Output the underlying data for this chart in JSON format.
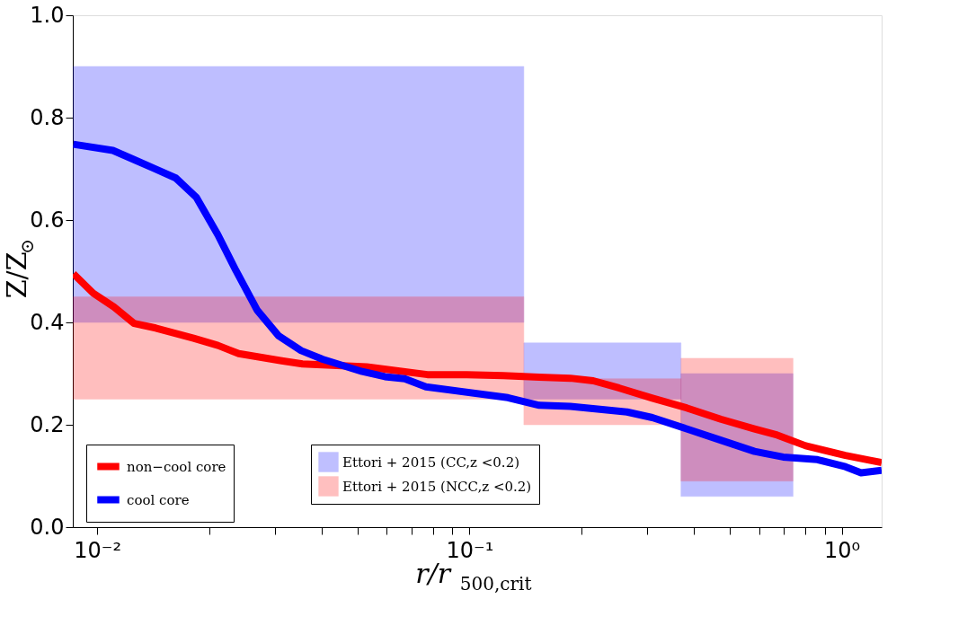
{
  "chart_data": {
    "type": "line",
    "xlabel": "r/r$_{500,crit}$",
    "ylabel": "Z/Z$_{⊙}$",
    "log": "x",
    "grid": false,
    "legend": "bottom left",
    "line_style": "solid",
    "marker": "none",
    "xlim": [
      0.0086,
      1.28
    ],
    "ylim": [
      0,
      1
    ],
    "xticks": [
      {
        "value": 0.01,
        "label": "10⁻²"
      },
      {
        "value": 0.02,
        "label": null
      },
      {
        "value": 0.03,
        "label": null
      },
      {
        "value": 0.04,
        "label": null
      },
      {
        "value": 0.05,
        "label": null
      },
      {
        "value": 0.06,
        "label": null
      },
      {
        "value": 0.07,
        "label": null
      },
      {
        "value": 0.08,
        "label": null
      },
      {
        "value": 0.09,
        "label": null
      },
      {
        "value": 0.1,
        "label": "10⁻¹"
      },
      {
        "value": 0.2,
        "label": null
      },
      {
        "value": 0.3,
        "label": null
      },
      {
        "value": 0.4,
        "label": null
      },
      {
        "value": 0.5,
        "label": null
      },
      {
        "value": 0.6,
        "label": null
      },
      {
        "value": 0.7,
        "label": null
      },
      {
        "value": 0.8,
        "label": null
      },
      {
        "value": 0.9,
        "label": null
      },
      {
        "value": 1,
        "label": "10⁰"
      }
    ],
    "yticks": [
      {
        "value": 0,
        "label": "0.0"
      },
      {
        "value": 0.2,
        "label": "0.2"
      },
      {
        "value": 0.4,
        "label": "0.4"
      },
      {
        "value": 0.6,
        "label": "0.6"
      },
      {
        "value": 0.8,
        "label": "0.8"
      },
      {
        "value": 1,
        "label": "1.0"
      }
    ],
    "series": [
      {
        "name": "Ettori + 2015 (CC,z <0.2)",
        "type": "area",
        "color": "#0000ff",
        "x": [
          0.0086,
          0.14,
          0.14,
          0.37,
          0.37,
          0.74
        ],
        "values": [
          null,
          null,
          null,
          null,
          null,
          null
        ],
        "lower": [
          0.4,
          0.4,
          0.25,
          0.25,
          0.06,
          0.06
        ],
        "upper": [
          0.9,
          0.9,
          0.36,
          0.36,
          0.3,
          0.3
        ]
      },
      {
        "name": "Ettori + 2015 (NCC,z <0.2)",
        "type": "area",
        "color": "#ff0000",
        "x": [
          0.0086,
          0.14,
          0.14,
          0.37,
          0.37,
          0.74
        ],
        "values": [
          null,
          null,
          null,
          null,
          null,
          null
        ],
        "lower": [
          0.25,
          0.25,
          0.2,
          0.2,
          0.09,
          0.09
        ],
        "upper": [
          0.45,
          0.45,
          0.29,
          0.29,
          0.33,
          0.33
        ]
      },
      {
        "name": "non−cool core",
        "color": "#ff0000",
        "x": [
          0.00863,
          0.00976,
          0.0111,
          0.01256,
          0.01436,
          0.01815,
          0.0211,
          0.024,
          0.0313,
          0.0356,
          0.053,
          0.0771,
          0.0984,
          0.1233,
          0.154,
          0.1866,
          0.215,
          0.252,
          0.31,
          0.383,
          0.473,
          0.583,
          0.671,
          0.8,
          1.023,
          1.28
        ],
        "values": [
          0.495,
          0.457,
          0.43,
          0.398,
          0.389,
          0.369,
          0.355,
          0.339,
          0.325,
          0.319,
          0.313,
          0.298,
          0.298,
          0.296,
          0.293,
          0.291,
          0.286,
          0.272,
          0.252,
          0.233,
          0.211,
          0.192,
          0.18,
          0.159,
          0.14,
          0.126
        ]
      },
      {
        "name": "cool core",
        "color": "#0000ff",
        "x": [
          0.00863,
          0.01102,
          0.01256,
          0.01419,
          0.01626,
          0.01848,
          0.0211,
          0.0236,
          0.0269,
          0.0307,
          0.0353,
          0.0403,
          0.0515,
          0.0593,
          0.067,
          0.0764,
          0.1268,
          0.154,
          0.1866,
          0.265,
          0.31,
          0.383,
          0.473,
          0.583,
          0.696,
          0.86,
          1.023,
          1.127,
          1.28
        ],
        "values": [
          0.748,
          0.736,
          0.718,
          0.701,
          0.682,
          0.644,
          0.571,
          0.501,
          0.424,
          0.374,
          0.345,
          0.328,
          0.304,
          0.294,
          0.29,
          0.274,
          0.253,
          0.238,
          0.236,
          0.225,
          0.214,
          0.192,
          0.17,
          0.148,
          0.137,
          0.132,
          0.118,
          0.106,
          0.111
        ]
      }
    ]
  }
}
